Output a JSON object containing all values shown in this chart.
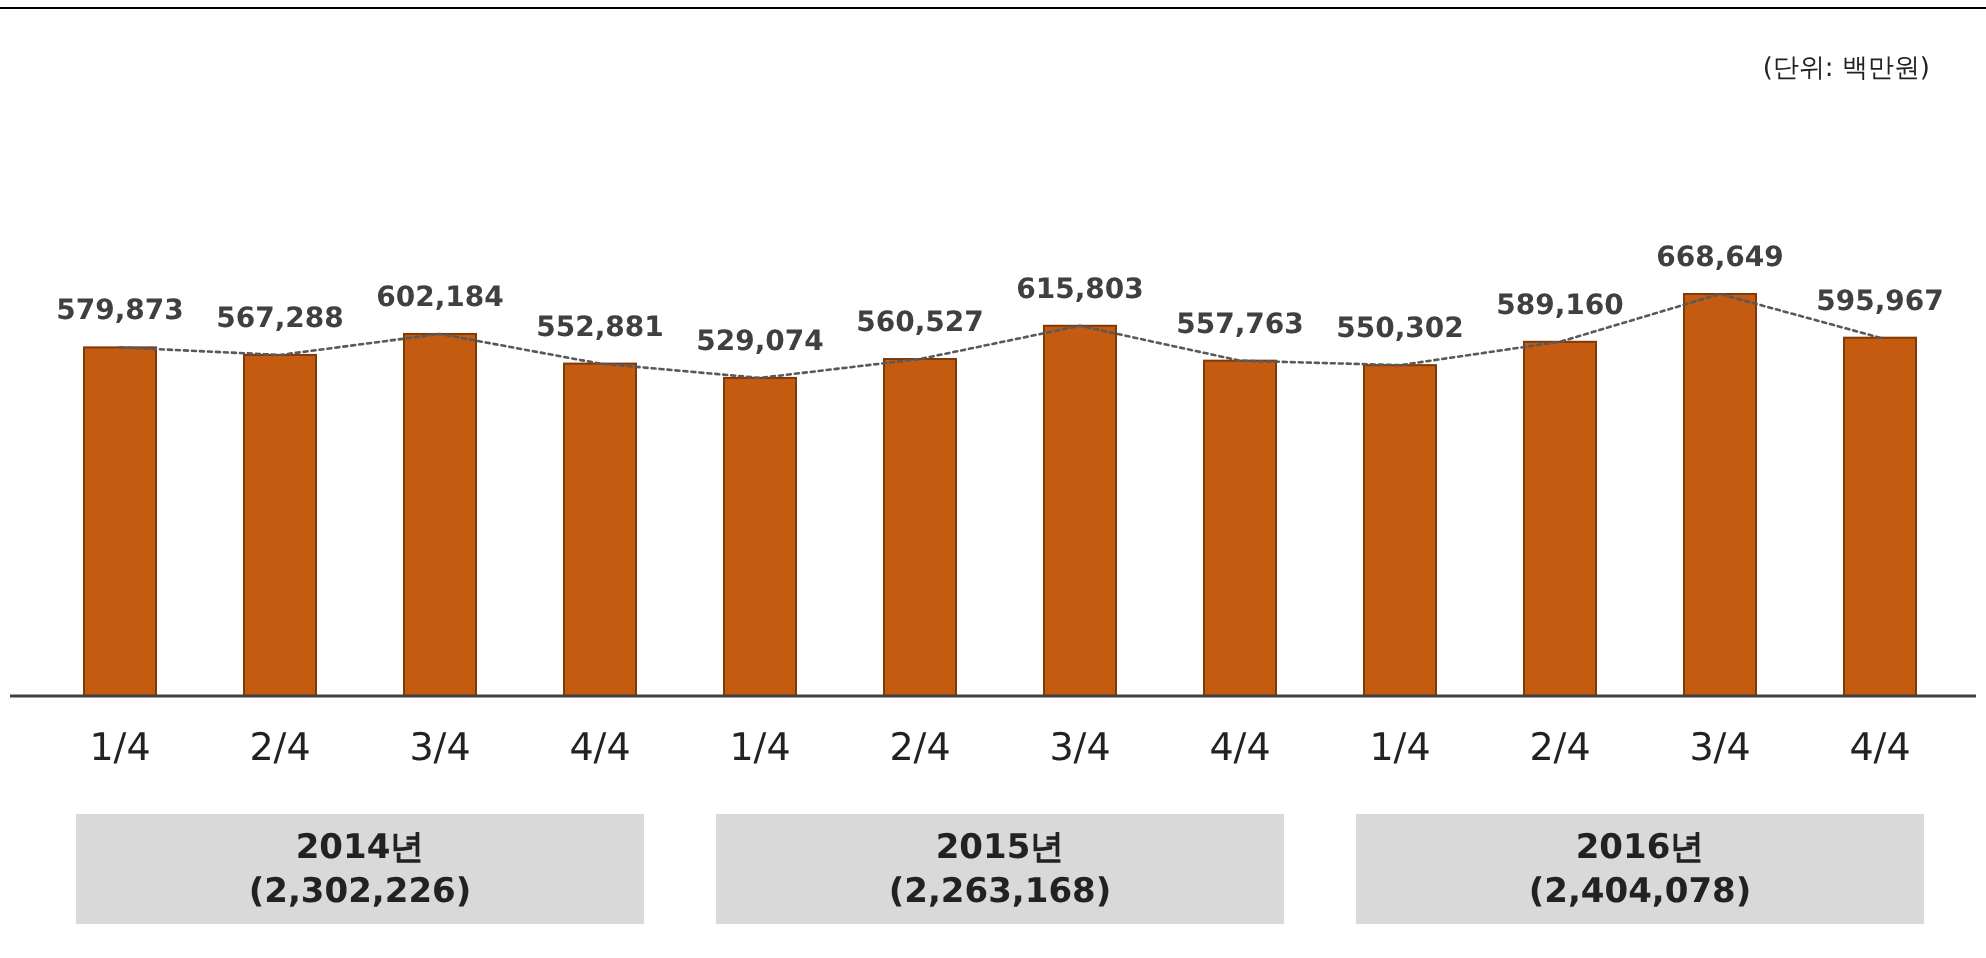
{
  "chart_data": {
    "type": "bar",
    "categories": [
      "1/4",
      "2/4",
      "3/4",
      "4/4",
      "1/4",
      "2/4",
      "3/4",
      "4/4",
      "1/4",
      "2/4",
      "3/4",
      "4/4"
    ],
    "series": [
      {
        "color": "#c55a11",
        "values": [
          579873,
          567288,
          602184,
          552881,
          529074,
          560527,
          615803,
          557763,
          550302,
          589160,
          668649,
          595967
        ],
        "value_labels": [
          "579,873",
          "567,288",
          "602,184",
          "552,881",
          "529,074",
          "560,527",
          "615,803",
          "557,763",
          "550,302",
          "589,160",
          "668,649",
          "595,967"
        ]
      },
      {
        "type": "line",
        "color": "#595959",
        "line_style": "dotted",
        "values": [
          579873,
          567288,
          602184,
          552881,
          529074,
          560527,
          615803,
          557763,
          550302,
          589160,
          668649,
          595967
        ]
      }
    ],
    "annotations": [
      "(단위: 백만원)",
      "2014년 (2,302,226)",
      "2015년 (2,263,168)",
      "2016년 (2,404,078)"
    ]
  }
}
